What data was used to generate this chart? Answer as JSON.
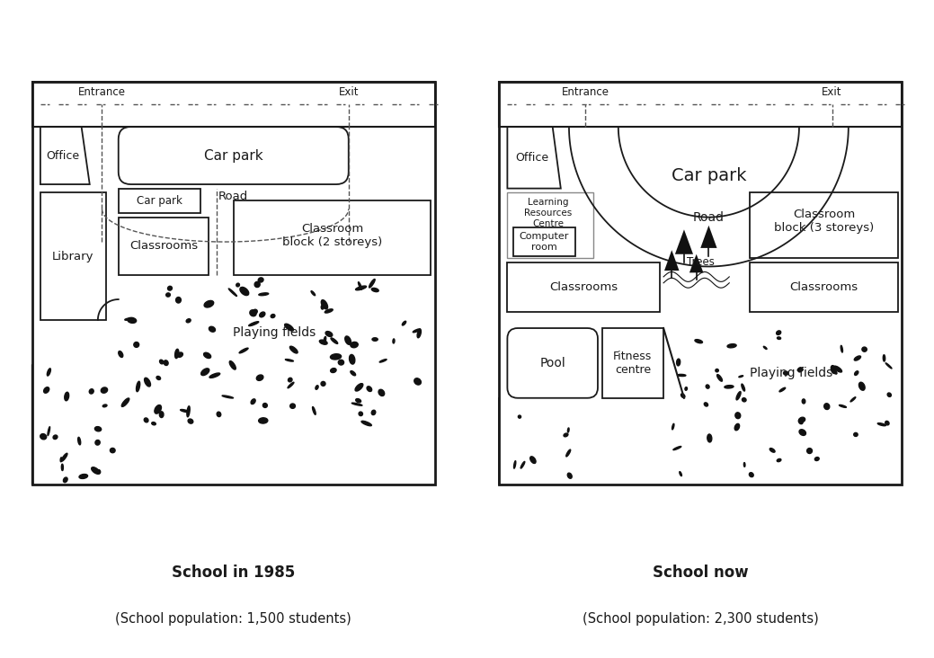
{
  "title_left": "School in 1985",
  "title_right": "School now",
  "subtitle_left": "(School population: 1,500 students)",
  "subtitle_right": "(School population: 2,300 students)",
  "bg_color": "#ffffff",
  "border_color": "#1a1a1a",
  "title_fontsize": 12,
  "subtitle_fontsize": 10.5,
  "map_label_fs": 9.5,
  "small_label_fs": 8.5
}
